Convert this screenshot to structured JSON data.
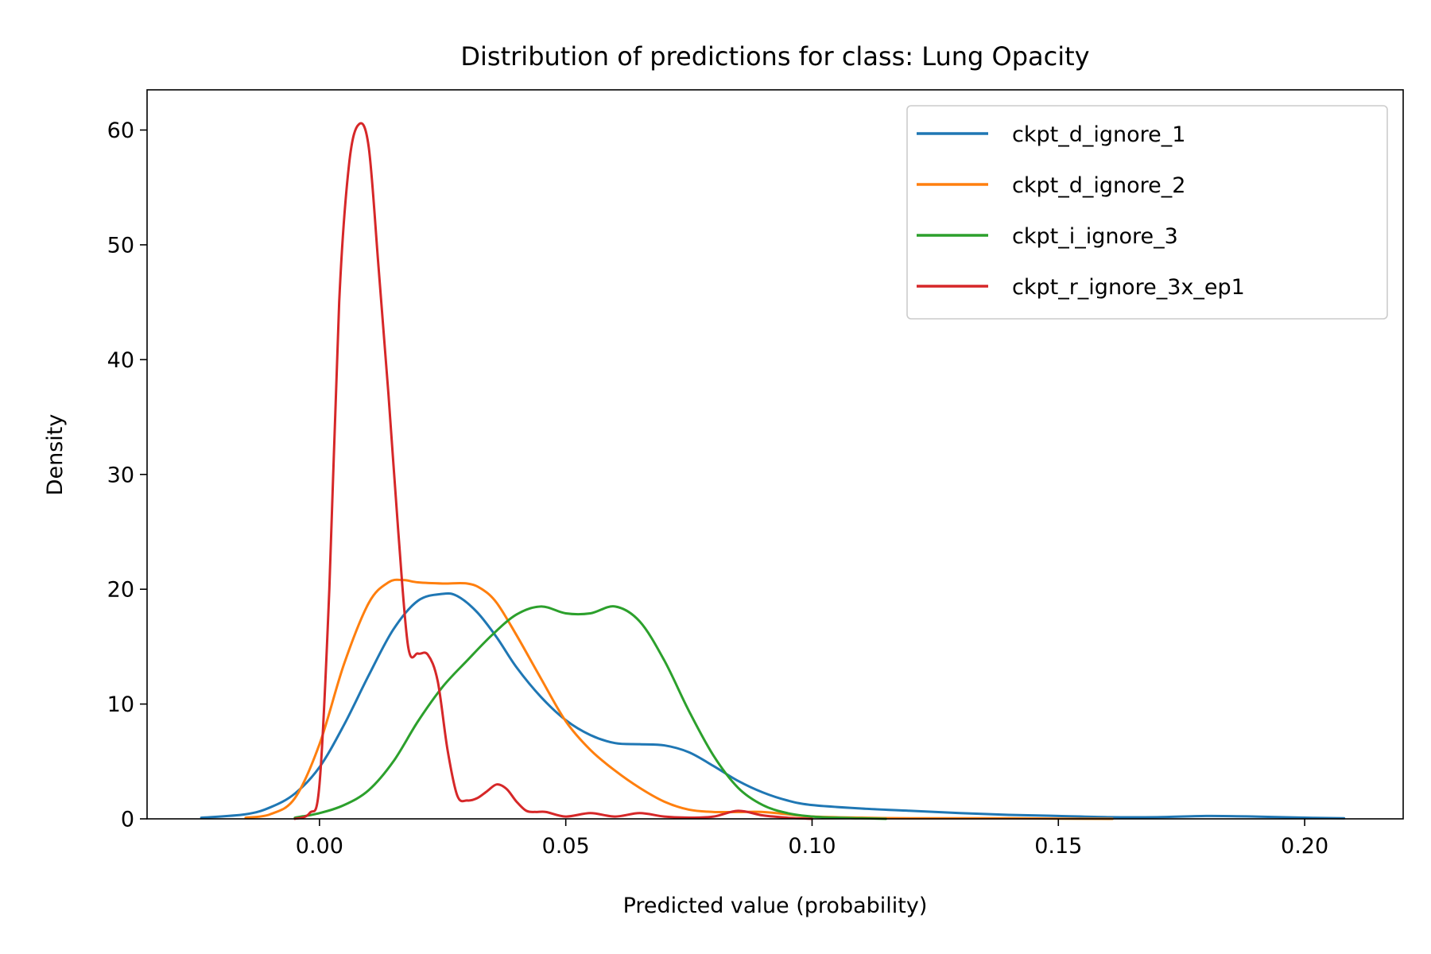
{
  "chart_data": {
    "type": "line",
    "title": "Distribution of predictions for class: Lung Opacity",
    "xlabel": "Predicted value (probability)",
    "ylabel": "Density",
    "xlim": [
      -0.035,
      0.22
    ],
    "ylim": [
      0,
      63.5
    ],
    "xticks": [
      0.0,
      0.05,
      0.1,
      0.15,
      0.2
    ],
    "xtick_labels": [
      "0.00",
      "0.05",
      "0.10",
      "0.15",
      "0.20"
    ],
    "yticks": [
      0,
      10,
      20,
      30,
      40,
      50,
      60
    ],
    "ytick_labels": [
      "0",
      "10",
      "20",
      "30",
      "40",
      "50",
      "60"
    ],
    "grid": false,
    "legend_position": "top-right",
    "series": [
      {
        "name": "ckpt_d_ignore_1",
        "color": "#1f77b4",
        "x": [
          -0.024,
          -0.015,
          -0.01,
          -0.005,
          0.0,
          0.005,
          0.01,
          0.015,
          0.02,
          0.025,
          0.028,
          0.032,
          0.036,
          0.04,
          0.045,
          0.05,
          0.055,
          0.06,
          0.065,
          0.07,
          0.075,
          0.08,
          0.085,
          0.09,
          0.095,
          0.1,
          0.11,
          0.12,
          0.13,
          0.14,
          0.15,
          0.16,
          0.17,
          0.18,
          0.19,
          0.2,
          0.208
        ],
        "y": [
          0.1,
          0.4,
          1.0,
          2.2,
          4.5,
          8.2,
          12.5,
          16.5,
          19.0,
          19.6,
          19.4,
          18.0,
          15.8,
          13.2,
          10.6,
          8.6,
          7.3,
          6.6,
          6.5,
          6.4,
          5.8,
          4.6,
          3.3,
          2.3,
          1.6,
          1.2,
          0.9,
          0.7,
          0.5,
          0.35,
          0.25,
          0.15,
          0.15,
          0.25,
          0.2,
          0.1,
          0.05
        ]
      },
      {
        "name": "ckpt_d_ignore_2",
        "color": "#ff7f0e",
        "x": [
          -0.015,
          -0.01,
          -0.005,
          0.0,
          0.005,
          0.01,
          0.014,
          0.017,
          0.02,
          0.025,
          0.03,
          0.033,
          0.036,
          0.04,
          0.045,
          0.05,
          0.055,
          0.06,
          0.065,
          0.07,
          0.075,
          0.08,
          0.085,
          0.09,
          0.095,
          0.1,
          0.11,
          0.12,
          0.13,
          0.14,
          0.15,
          0.161
        ],
        "y": [
          0.1,
          0.4,
          1.8,
          6.5,
          13.5,
          18.8,
          20.6,
          20.8,
          20.6,
          20.5,
          20.5,
          20.0,
          18.8,
          16.0,
          12.2,
          8.5,
          6.0,
          4.2,
          2.7,
          1.5,
          0.8,
          0.6,
          0.6,
          0.6,
          0.4,
          0.2,
          0.1,
          0.05,
          0.05,
          0.05,
          0.02,
          0.0
        ]
      },
      {
        "name": "ckpt_i_ignore_3",
        "color": "#2ca02c",
        "x": [
          -0.005,
          0.0,
          0.005,
          0.01,
          0.015,
          0.02,
          0.025,
          0.03,
          0.035,
          0.04,
          0.045,
          0.05,
          0.055,
          0.06,
          0.065,
          0.07,
          0.075,
          0.08,
          0.085,
          0.09,
          0.095,
          0.1,
          0.105,
          0.11,
          0.115
        ],
        "y": [
          0.1,
          0.5,
          1.2,
          2.5,
          5.0,
          8.5,
          11.5,
          13.8,
          16.0,
          17.8,
          18.5,
          17.9,
          17.9,
          18.5,
          17.2,
          13.8,
          9.4,
          5.5,
          2.7,
          1.2,
          0.5,
          0.2,
          0.1,
          0.05,
          0.0
        ]
      },
      {
        "name": "ckpt_r_ignore_3x_ep1",
        "color": "#d62728",
        "x": [
          -0.005,
          -0.002,
          0.0,
          0.002,
          0.004,
          0.006,
          0.008,
          0.01,
          0.012,
          0.014,
          0.016,
          0.018,
          0.02,
          0.022,
          0.024,
          0.026,
          0.028,
          0.03,
          0.032,
          0.034,
          0.036,
          0.038,
          0.04,
          0.042,
          0.044,
          0.046,
          0.05,
          0.055,
          0.06,
          0.065,
          0.07,
          0.075,
          0.08,
          0.085,
          0.09,
          0.095,
          0.1
        ],
        "y": [
          0.0,
          0.5,
          3.0,
          20.0,
          45.0,
          57.0,
          60.5,
          58.5,
          48.0,
          37.0,
          25.0,
          15.0,
          14.4,
          14.3,
          12.0,
          6.0,
          2.0,
          1.6,
          1.8,
          2.4,
          3.0,
          2.6,
          1.5,
          0.7,
          0.6,
          0.6,
          0.2,
          0.5,
          0.2,
          0.5,
          0.2,
          0.1,
          0.2,
          0.7,
          0.3,
          0.1,
          0.0
        ]
      }
    ]
  }
}
